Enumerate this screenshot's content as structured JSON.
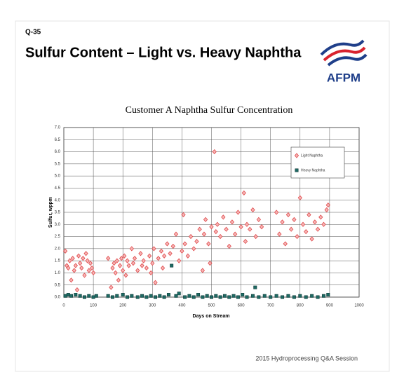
{
  "header": {
    "label": "Q-35",
    "title": "Sulfur Content – Light vs. Heavy Naphtha",
    "logo": "AFPM"
  },
  "footer": "2015 Hydroprocessing Q&A Session",
  "chart_data": {
    "type": "scatter",
    "title": "Customer A Naphtha Sulfur Concentration",
    "x_label": "Days on Stream",
    "y_label": "Sulfur, wppm",
    "xlim": [
      0,
      1000
    ],
    "xticks": [
      0,
      100,
      200,
      300,
      400,
      500,
      600,
      700,
      800,
      900,
      1000
    ],
    "ylim": [
      0,
      7
    ],
    "yticks": [
      {
        "value": 0,
        "label": "0.0"
      },
      0.5,
      {
        "value": 1,
        "label": "1.0"
      },
      1.5,
      {
        "value": 2,
        "label": "2.0"
      },
      2.5,
      {
        "value": 3,
        "label": "3.0"
      },
      3.5,
      {
        "value": 4,
        "label": "4.0"
      },
      4.5,
      {
        "value": 5,
        "label": "5.0"
      },
      5.5,
      {
        "value": 6,
        "label": "6.0"
      },
      6.5,
      {
        "value": 7,
        "label": "7.0"
      }
    ],
    "grid": true,
    "legend": "upper right",
    "series": [
      {
        "name": "Light Naphtha",
        "color": "#e0484a",
        "marker": "diamond",
        "x": [
          5,
          10,
          15,
          20,
          25,
          30,
          35,
          40,
          45,
          50,
          55,
          60,
          65,
          70,
          75,
          80,
          85,
          90,
          95,
          100,
          150,
          160,
          165,
          170,
          175,
          180,
          185,
          190,
          195,
          200,
          205,
          210,
          215,
          220,
          230,
          235,
          240,
          250,
          260,
          265,
          270,
          280,
          290,
          295,
          300,
          305,
          310,
          320,
          330,
          335,
          340,
          350,
          360,
          370,
          380,
          390,
          400,
          405,
          410,
          420,
          430,
          440,
          450,
          460,
          470,
          475,
          480,
          490,
          495,
          500,
          510,
          515,
          520,
          530,
          540,
          550,
          560,
          570,
          580,
          590,
          600,
          610,
          615,
          620,
          630,
          640,
          650,
          660,
          670,
          720,
          730,
          740,
          750,
          760,
          770,
          780,
          790,
          800,
          810,
          820,
          830,
          840,
          850,
          860,
          870,
          880,
          890,
          895
        ],
        "values": [
          1.9,
          1.3,
          1.2,
          1.5,
          0.7,
          1.6,
          1.1,
          1.3,
          0.3,
          1.7,
          1.4,
          1.2,
          1.6,
          0.9,
          1.8,
          1.5,
          1.1,
          1.4,
          1.2,
          1.0,
          1.6,
          0.4,
          1.2,
          1.4,
          1.0,
          1.5,
          0.7,
          1.3,
          1.6,
          1.1,
          1.7,
          0.9,
          1.5,
          1.3,
          2.0,
          1.4,
          1.6,
          1.1,
          1.8,
          1.3,
          1.5,
          1.2,
          1.7,
          1.0,
          1.4,
          2.0,
          0.6,
          1.6,
          1.9,
          1.2,
          1.7,
          2.2,
          1.8,
          2.1,
          2.6,
          1.5,
          1.9,
          3.4,
          2.2,
          1.7,
          2.5,
          2.0,
          2.3,
          2.8,
          1.1,
          2.6,
          3.2,
          2.2,
          1.4,
          2.9,
          6.0,
          2.7,
          3.0,
          2.5,
          3.3,
          2.8,
          2.1,
          3.1,
          2.6,
          3.5,
          2.9,
          4.3,
          2.3,
          3.0,
          2.8,
          3.6,
          2.5,
          3.2,
          2.9,
          3.5,
          2.6,
          3.1,
          2.2,
          3.4,
          2.8,
          3.2,
          2.5,
          4.1,
          3.0,
          2.7,
          3.4,
          2.4,
          3.1,
          2.8,
          3.3,
          3.0,
          3.6,
          3.8
        ]
      },
      {
        "name": "Heavy Naphtha",
        "color": "#1e6a64",
        "marker": "square",
        "x": [
          5,
          15,
          25,
          40,
          55,
          70,
          85,
          100,
          110,
          150,
          165,
          180,
          200,
          215,
          230,
          250,
          265,
          280,
          295,
          310,
          325,
          340,
          355,
          365,
          380,
          390,
          410,
          425,
          440,
          455,
          470,
          485,
          500,
          515,
          530,
          545,
          560,
          575,
          590,
          605,
          620,
          640,
          648,
          660,
          680,
          700,
          720,
          740,
          760,
          780,
          800,
          820,
          840,
          860,
          880,
          895
        ],
        "values": [
          0.05,
          0.1,
          0.05,
          0.1,
          0.05,
          0,
          0.05,
          0,
          0.05,
          0.05,
          0,
          0.05,
          0.1,
          0,
          0.05,
          0,
          0.05,
          0,
          0.05,
          0,
          0.05,
          0,
          0.1,
          1.3,
          0.05,
          0.15,
          0,
          0.05,
          0,
          0.1,
          0,
          0.05,
          0,
          0.05,
          0,
          0.05,
          0,
          0.05,
          0,
          0.1,
          0,
          0.05,
          0.4,
          0,
          0.05,
          0,
          0.05,
          0,
          0.05,
          0,
          0.05,
          0,
          0.05,
          0,
          0.05,
          0.1
        ]
      }
    ]
  }
}
